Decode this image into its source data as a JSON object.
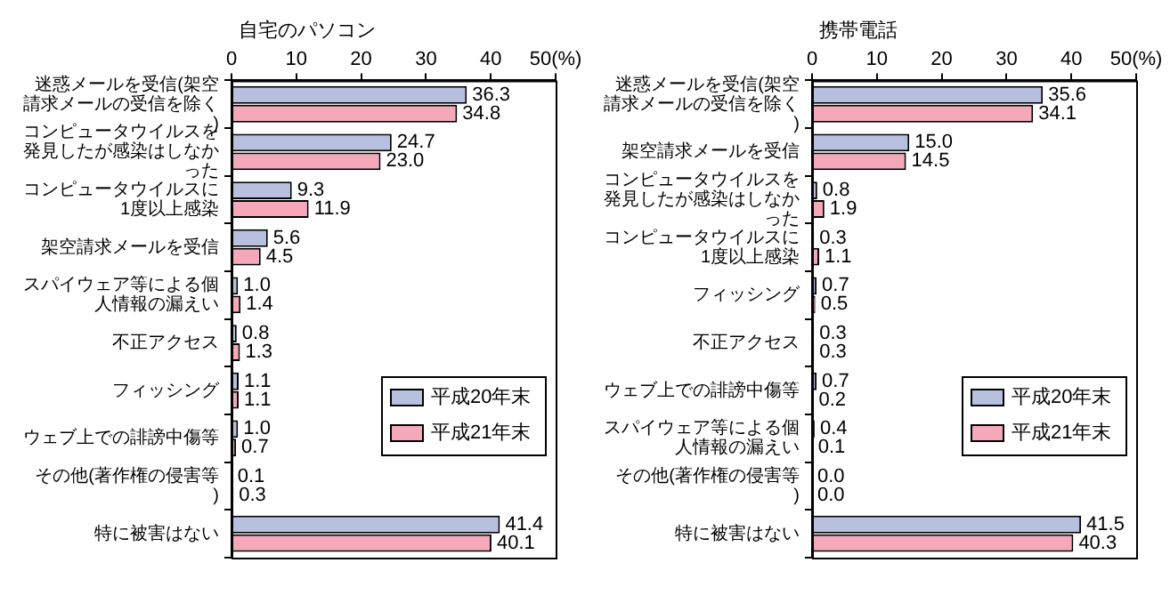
{
  "chart_data": [
    {
      "type": "bar",
      "orientation": "horizontal",
      "title": "自宅のパソコン",
      "categories": [
        "迷惑メールを受信(架空請求メールの受信を除く)",
        "コンピュータウイルスを発見したが感染はしなかった",
        "コンピュータウイルスに1度以上感染",
        "架空請求メールを受信",
        "スパイウェア等による個人情報の漏えい",
        "不正アクセス",
        "フィッシング",
        "ウェブ上での誹謗中傷等",
        "その他(著作権の侵害等)",
        "特に被害はない"
      ],
      "series": [
        {
          "name": "平成20年末",
          "color": "#b8c0e0",
          "values": [
            36.3,
            24.7,
            9.3,
            5.6,
            1.0,
            0.8,
            1.1,
            1.0,
            0.1,
            41.4
          ],
          "value_labels": [
            "36.3",
            "24.7",
            "9.3",
            "5.6",
            "1.0",
            "0.8",
            "1.1",
            "1.0",
            "0.1",
            "41.4"
          ]
        },
        {
          "name": "平成21年末",
          "color": "#f4a8ba",
          "values": [
            34.8,
            23.0,
            11.9,
            4.5,
            1.4,
            1.3,
            1.1,
            0.7,
            0.3,
            40.1
          ],
          "value_labels": [
            "34.8",
            "23.0",
            "11.9",
            "4.5",
            "1.4",
            "1.3",
            "1.1",
            "0.7",
            "0.3",
            "40.1"
          ]
        }
      ],
      "xlim": [
        0,
        50
      ],
      "xticks": [
        0,
        10,
        20,
        30,
        40,
        {
          "value": 50,
          "label": "50(%)"
        }
      ],
      "grid": false,
      "legend": "right"
    },
    {
      "type": "bar",
      "orientation": "horizontal",
      "title": "携帯電話",
      "categories": [
        "迷惑メールを受信(架空請求メールの受信を除く)",
        "架空請求メールを受信",
        "コンピュータウイルスを発見したが感染はしなかった",
        "コンピュータウイルスに1度以上感染",
        "フィッシング",
        "不正アクセス",
        "ウェブ上での誹謗中傷等",
        "スパイウェア等による個人情報の漏えい",
        "その他(著作権の侵害等)",
        "特に被害はない"
      ],
      "series": [
        {
          "name": "平成20年末",
          "color": "#b8c0e0",
          "values": [
            35.6,
            15.0,
            0.8,
            0.3,
            0.7,
            0.3,
            0.7,
            0.4,
            0.0,
            41.5
          ],
          "value_labels": [
            "35.6",
            "15.0",
            "0.8",
            "0.3",
            "0.7",
            "0.3",
            "0.7",
            "0.4",
            "0.0",
            "41.5"
          ]
        },
        {
          "name": "平成21年末",
          "color": "#f4a8ba",
          "values": [
            34.1,
            14.5,
            1.9,
            1.1,
            0.5,
            0.3,
            0.2,
            0.1,
            0.0,
            40.3
          ],
          "value_labels": [
            "34.1",
            "14.5",
            "1.9",
            "1.1",
            "0.5",
            "0.3",
            "0.2",
            "0.1",
            "0.0",
            "40.3"
          ]
        }
      ],
      "xlim": [
        0,
        50
      ],
      "xticks": [
        0,
        10,
        20,
        30,
        40,
        {
          "value": 50,
          "label": "50(%)"
        }
      ],
      "grid": false,
      "legend": "right"
    }
  ]
}
